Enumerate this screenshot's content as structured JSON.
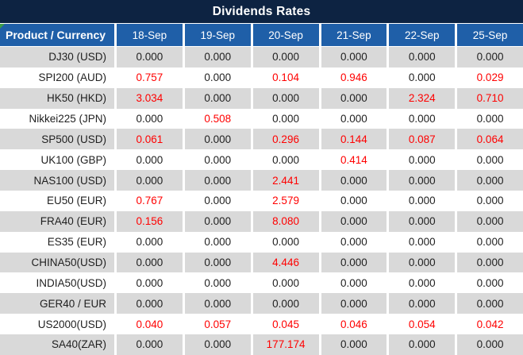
{
  "title": "Dividends Rates",
  "colors": {
    "title_bg": "#0D2342",
    "header_bg": "#1F5FA8",
    "row_alt": "#D9D9D9",
    "row_bg": "#FFFFFF",
    "value_red": "#FF0000",
    "text": "#1F1F1F",
    "indicator_green": "#3C9E47"
  },
  "table": {
    "header": {
      "product_label": "Product / Currency",
      "dates": [
        "18-Sep",
        "19-Sep",
        "20-Sep",
        "21-Sep",
        "22-Sep",
        "25-Sep"
      ]
    },
    "rows": [
      {
        "product": "DJ30 (USD)",
        "values": [
          "0.000",
          "0.000",
          "0.000",
          "0.000",
          "0.000",
          "0.000"
        ],
        "red_mask": [
          0,
          0,
          0,
          0,
          0,
          0
        ]
      },
      {
        "product": "SPI200 (AUD)",
        "values": [
          "0.757",
          "0.000",
          "0.104",
          "0.946",
          "0.000",
          "0.029"
        ],
        "red_mask": [
          1,
          0,
          1,
          1,
          0,
          1
        ]
      },
      {
        "product": "HK50 (HKD)",
        "values": [
          "3.034",
          "0.000",
          "0.000",
          "0.000",
          "2.324",
          "0.710"
        ],
        "red_mask": [
          1,
          0,
          0,
          0,
          1,
          1
        ]
      },
      {
        "product": "Nikkei225 (JPN)",
        "values": [
          "0.000",
          "0.508",
          "0.000",
          "0.000",
          "0.000",
          "0.000"
        ],
        "red_mask": [
          0,
          1,
          0,
          0,
          0,
          0
        ]
      },
      {
        "product": "SP500 (USD)",
        "values": [
          "0.061",
          "0.000",
          "0.296",
          "0.144",
          "0.087",
          "0.064"
        ],
        "red_mask": [
          1,
          0,
          1,
          1,
          1,
          1
        ]
      },
      {
        "product": "UK100 (GBP)",
        "values": [
          "0.000",
          "0.000",
          "0.000",
          "0.414",
          "0.000",
          "0.000"
        ],
        "red_mask": [
          0,
          0,
          0,
          1,
          0,
          0
        ]
      },
      {
        "product": "NAS100 (USD)",
        "values": [
          "0.000",
          "0.000",
          "2.441",
          "0.000",
          "0.000",
          "0.000"
        ],
        "red_mask": [
          0,
          0,
          1,
          0,
          0,
          0
        ]
      },
      {
        "product": "EU50 (EUR)",
        "values": [
          "0.767",
          "0.000",
          "2.579",
          "0.000",
          "0.000",
          "0.000"
        ],
        "red_mask": [
          1,
          0,
          1,
          0,
          0,
          0
        ]
      },
      {
        "product": "FRA40 (EUR)",
        "values": [
          "0.156",
          "0.000",
          "8.080",
          "0.000",
          "0.000",
          "0.000"
        ],
        "red_mask": [
          1,
          0,
          1,
          0,
          0,
          0
        ]
      },
      {
        "product": "ES35 (EUR)",
        "values": [
          "0.000",
          "0.000",
          "0.000",
          "0.000",
          "0.000",
          "0.000"
        ],
        "red_mask": [
          0,
          0,
          0,
          0,
          0,
          0
        ]
      },
      {
        "product": "CHINA50(USD)",
        "values": [
          "0.000",
          "0.000",
          "4.446",
          "0.000",
          "0.000",
          "0.000"
        ],
        "red_mask": [
          0,
          0,
          1,
          0,
          0,
          0
        ]
      },
      {
        "product": "INDIA50(USD)",
        "values": [
          "0.000",
          "0.000",
          "0.000",
          "0.000",
          "0.000",
          "0.000"
        ],
        "red_mask": [
          0,
          0,
          0,
          0,
          0,
          0
        ]
      },
      {
        "product": "GER40 / EUR",
        "values": [
          "0.000",
          "0.000",
          "0.000",
          "0.000",
          "0.000",
          "0.000"
        ],
        "red_mask": [
          0,
          0,
          0,
          0,
          0,
          0
        ]
      },
      {
        "product": "US2000(USD)",
        "values": [
          "0.040",
          "0.057",
          "0.045",
          "0.046",
          "0.054",
          "0.042"
        ],
        "red_mask": [
          1,
          1,
          1,
          1,
          1,
          1
        ]
      },
      {
        "product": "SA40(ZAR)",
        "values": [
          "0.000",
          "0.000",
          "177.174",
          "0.000",
          "0.000",
          "0.000"
        ],
        "red_mask": [
          0,
          0,
          1,
          0,
          0,
          0
        ]
      }
    ]
  }
}
